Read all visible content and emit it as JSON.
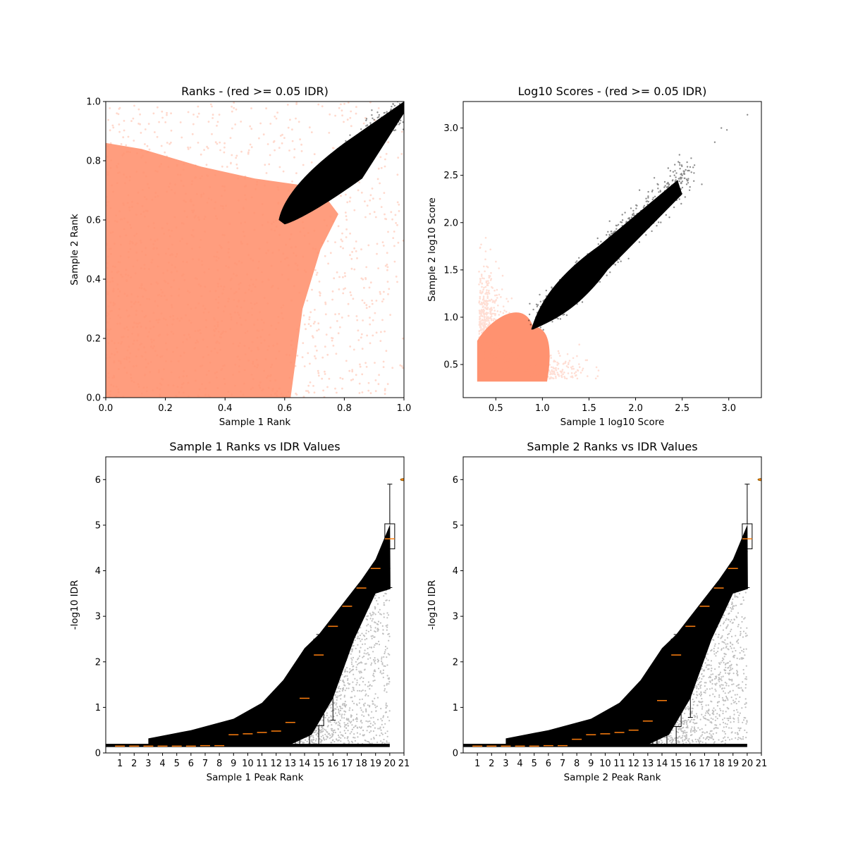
{
  "colors": {
    "fail": "#ff9270",
    "pass": "#000000",
    "median": "#ff7f0e",
    "box": "#000000"
  },
  "chart_data": [
    {
      "type": "scatter",
      "title": "Ranks - (red >= 0.05 IDR)",
      "xlabel": "Sample 1 Rank",
      "ylabel": "Sample 2 Rank",
      "xlim": [
        0,
        1
      ],
      "ylim": [
        0,
        1
      ],
      "xticks": [
        "0.0",
        "0.2",
        "0.4",
        "0.6",
        "0.8",
        "1.0"
      ],
      "yticks": [
        "0.0",
        "0.2",
        "0.4",
        "0.6",
        "0.8",
        "1.0"
      ],
      "series": [
        {
          "color": "red",
          "region": "below IDR threshold",
          "x_range": [
            0,
            1
          ],
          "y_range": [
            0,
            1
          ],
          "opacity": 0.3
        },
        {
          "color": "black",
          "region": "passing peaks",
          "x_range": [
            0.58,
            1
          ],
          "y_range": [
            0.58,
            1
          ]
        }
      ]
    },
    {
      "type": "scatter",
      "title": "Log10 Scores - (red >= 0.05 IDR)",
      "xlabel": "Sample 1 log10 Score",
      "ylabel": "Sample 2 log10 Score",
      "xlim": [
        0.15,
        3.35
      ],
      "ylim": [
        0.15,
        3.28
      ],
      "xticks": [
        "0.5",
        "1.0",
        "1.5",
        "2.0",
        "2.5",
        "3.0"
      ],
      "yticks": [
        "0.5",
        "1.0",
        "1.5",
        "2.0",
        "2.5",
        "3.0"
      ],
      "series": [
        {
          "color": "red",
          "region": "below IDR threshold",
          "x_range": [
            0.3,
            2.6
          ],
          "y_range": [
            0.3,
            2.55
          ]
        },
        {
          "color": "black",
          "region": "passing peaks",
          "x_range": [
            0.88,
            3.2
          ],
          "y_range": [
            0.88,
            3.14
          ]
        }
      ]
    },
    {
      "type": "scatter",
      "title": "Sample 1 Ranks vs IDR Values",
      "xlabel": "Sample 1 Peak Rank",
      "ylabel": "-log10 IDR",
      "xlim": [
        0,
        21
      ],
      "ylim": [
        0,
        6.5
      ],
      "xticks": [
        "1",
        "2",
        "3",
        "4",
        "5",
        "6",
        "7",
        "8",
        "9",
        "10",
        "11",
        "12",
        "13",
        "14",
        "15",
        "16",
        "17",
        "18",
        "19",
        "20",
        "21"
      ],
      "yticks": [
        "0",
        "1",
        "2",
        "3",
        "4",
        "5",
        "6"
      ],
      "envelope": {
        "x": [
          3,
          6,
          9,
          11,
          12.5,
          14,
          15,
          16,
          17,
          18,
          19,
          20,
          20
        ],
        "y": [
          0.32,
          0.5,
          0.75,
          1.1,
          1.6,
          2.3,
          2.6,
          3.0,
          3.4,
          3.8,
          4.25,
          5.0,
          6.0
        ]
      },
      "boxes": [
        {
          "pos": 13,
          "median": 0.67,
          "q1": 0.16,
          "q3": 1.35,
          "whislo": 0.16,
          "whishi": 1.4
        },
        {
          "pos": 14,
          "median": 1.2,
          "q1": 0.16,
          "q3": 1.9,
          "whislo": 0.16,
          "whishi": 1.95
        },
        {
          "pos": 15,
          "median": 2.15,
          "q1": 0.6,
          "q3": 2.5,
          "whislo": 0.16,
          "whishi": 2.6
        },
        {
          "pos": 16,
          "median": 2.78,
          "q1": 2.05,
          "q3": 2.78,
          "whislo": 0.72,
          "whishi": 2.8
        },
        {
          "pos": 17,
          "median": 3.22,
          "q1": 3.0,
          "q3": 3.22,
          "whislo": 2.5,
          "whishi": 3.23
        },
        {
          "pos": 18,
          "median": 3.62,
          "q1": 3.5,
          "q3": 3.62,
          "whislo": 3.15,
          "whishi": 3.63
        },
        {
          "pos": 19,
          "median": 4.05,
          "q1": 3.95,
          "q3": 4.07,
          "whislo": 3.52,
          "whishi": 4.1
        },
        {
          "pos": 20,
          "median": 4.7,
          "q1": 4.48,
          "q3": 5.03,
          "whislo": 3.63,
          "whishi": 5.9
        }
      ],
      "medians_low": [
        0.15,
        0.15,
        0.15,
        0.15,
        0.15,
        0.15,
        0.16,
        0.16,
        0.4,
        0.42,
        0.45,
        0.48
      ],
      "outlier": {
        "x": 21,
        "y": 6.0
      }
    },
    {
      "type": "scatter",
      "title": "Sample 2 Ranks vs IDR Values",
      "xlabel": "Sample 2 Peak Rank",
      "ylabel": "-log10 IDR",
      "xlim": [
        0,
        21
      ],
      "ylim": [
        0,
        6.5
      ],
      "xticks": [
        "1",
        "2",
        "3",
        "4",
        "5",
        "6",
        "7",
        "8",
        "9",
        "10",
        "11",
        "12",
        "13",
        "14",
        "15",
        "16",
        "17",
        "18",
        "19",
        "20",
        "21"
      ],
      "yticks": [
        "0",
        "1",
        "2",
        "3",
        "4",
        "5",
        "6"
      ],
      "envelope": {
        "x": [
          3,
          6,
          9,
          11,
          12.5,
          14,
          15,
          16,
          17,
          18,
          19,
          20,
          20
        ],
        "y": [
          0.32,
          0.5,
          0.75,
          1.1,
          1.6,
          2.3,
          2.6,
          3.0,
          3.4,
          3.8,
          4.25,
          5.0,
          6.0
        ]
      },
      "boxes": [
        {
          "pos": 13,
          "median": 0.7,
          "q1": 0.16,
          "q3": 1.38,
          "whislo": 0.16,
          "whishi": 1.42
        },
        {
          "pos": 14,
          "median": 1.15,
          "q1": 0.16,
          "q3": 1.95,
          "whislo": 0.16,
          "whishi": 1.98
        },
        {
          "pos": 15,
          "median": 2.15,
          "q1": 0.58,
          "q3": 2.5,
          "whislo": 0.16,
          "whishi": 2.6
        },
        {
          "pos": 16,
          "median": 2.78,
          "q1": 2.08,
          "q3": 2.78,
          "whislo": 0.78,
          "whishi": 2.8
        },
        {
          "pos": 17,
          "median": 3.22,
          "q1": 3.0,
          "q3": 3.22,
          "whislo": 2.5,
          "whishi": 3.23
        },
        {
          "pos": 18,
          "median": 3.62,
          "q1": 3.5,
          "q3": 3.62,
          "whislo": 3.15,
          "whishi": 3.63
        },
        {
          "pos": 19,
          "median": 4.05,
          "q1": 3.95,
          "q3": 4.07,
          "whislo": 3.52,
          "whishi": 4.1
        },
        {
          "pos": 20,
          "median": 4.7,
          "q1": 4.48,
          "q3": 5.03,
          "whislo": 3.63,
          "whishi": 5.9
        }
      ],
      "medians_low": [
        0.15,
        0.15,
        0.15,
        0.15,
        0.15,
        0.16,
        0.16,
        0.3,
        0.4,
        0.42,
        0.45,
        0.5
      ],
      "outlier": {
        "x": 21,
        "y": 6.0
      }
    }
  ]
}
